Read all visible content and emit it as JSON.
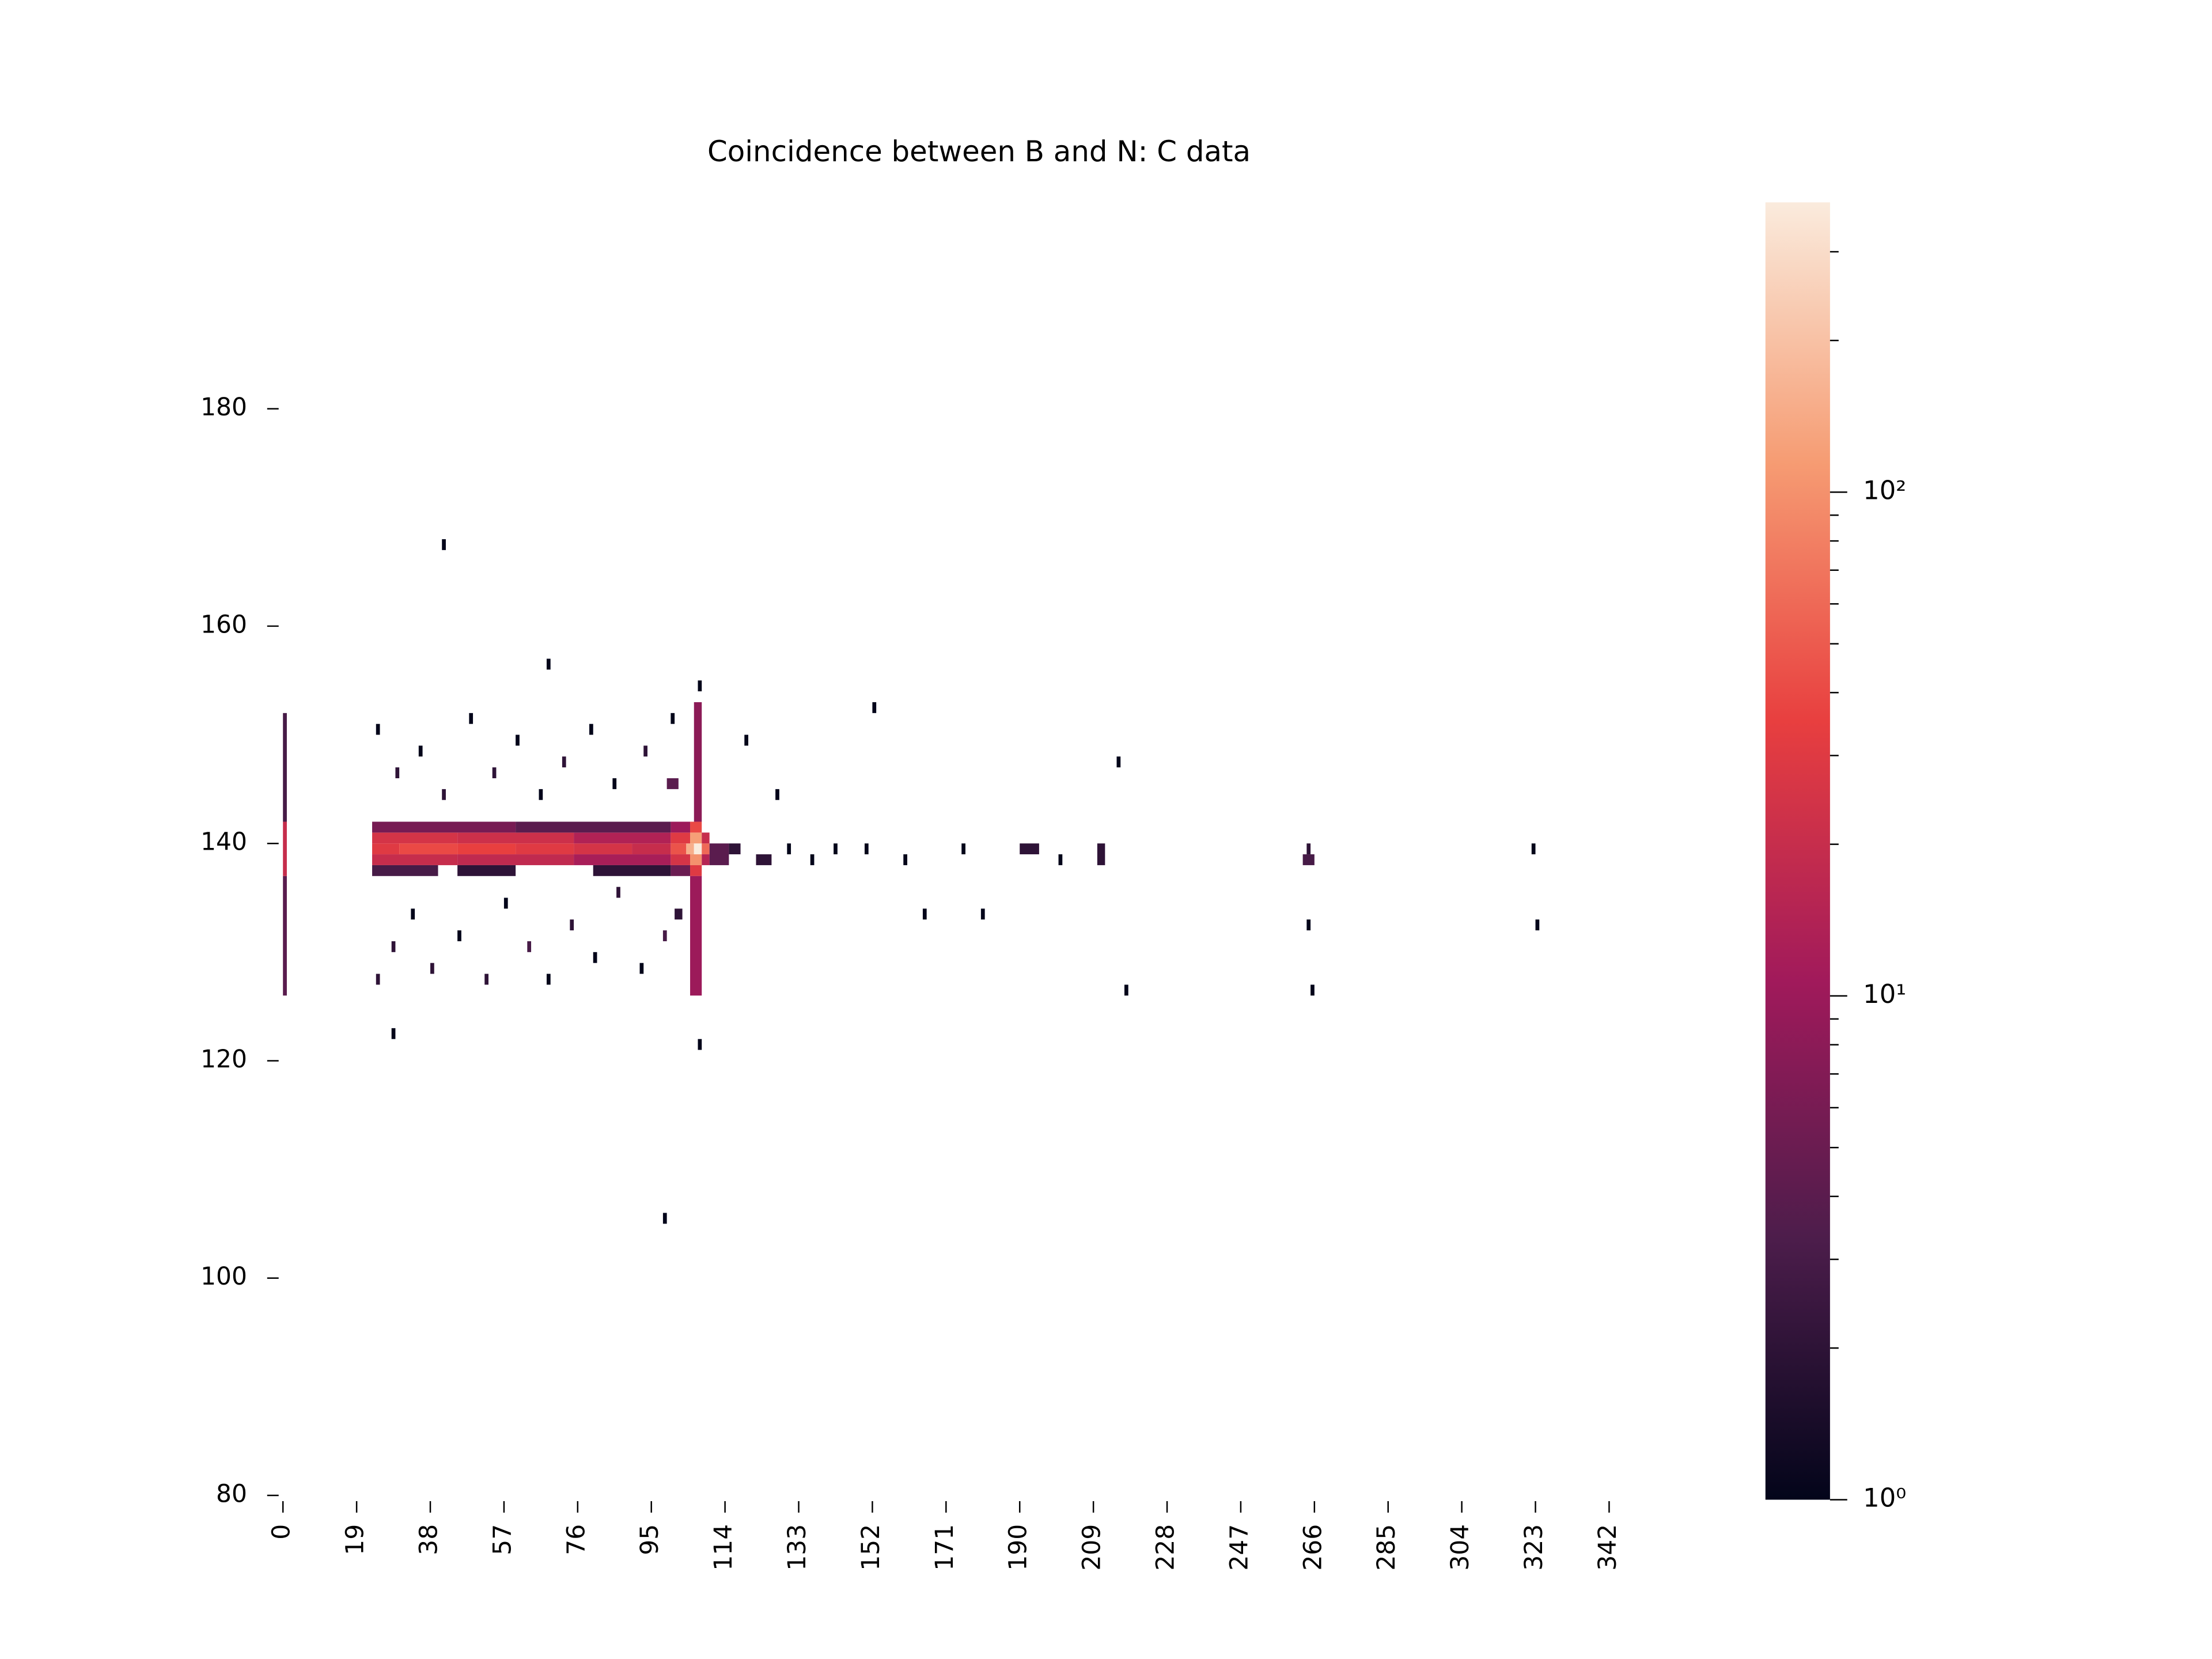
{
  "chart_data": {
    "type": "heatmap",
    "title": "Coincidence between B and N: C data",
    "xlim": [
      0,
      356
    ],
    "ylim": [
      80,
      199
    ],
    "xticks": [
      0,
      19,
      38,
      57,
      76,
      95,
      114,
      133,
      152,
      171,
      190,
      209,
      228,
      247,
      266,
      285,
      304,
      323,
      342
    ],
    "yticks": [
      80,
      100,
      120,
      140,
      160,
      180
    ],
    "color_scale": "log",
    "clim": [
      1,
      376
    ],
    "cticks": [
      {
        "value": 1,
        "label": "10⁰"
      },
      {
        "value": 10,
        "label": "10¹"
      },
      {
        "value": 100,
        "label": "10²"
      }
    ],
    "cticks_minor": [
      2,
      3,
      4,
      5,
      6,
      7,
      8,
      9,
      20,
      30,
      40,
      50,
      60,
      70,
      80,
      90,
      200,
      300
    ],
    "colormap": [
      "#03051a",
      "#4c1d4b",
      "#a11a5b",
      "#e83f3f",
      "#f69c73",
      "#faebdd"
    ],
    "cells": [
      {
        "x0": 23,
        "x1": 30,
        "y0": 139,
        "y1": 140,
        "value": 30
      },
      {
        "x0": 30,
        "x1": 45,
        "y0": 139,
        "y1": 140,
        "value": 40
      },
      {
        "x0": 45,
        "x1": 60,
        "y0": 139,
        "y1": 140,
        "value": 35
      },
      {
        "x0": 60,
        "x1": 75,
        "y0": 139,
        "y1": 140,
        "value": 30
      },
      {
        "x0": 75,
        "x1": 90,
        "y0": 139,
        "y1": 140,
        "value": 25
      },
      {
        "x0": 90,
        "x1": 100,
        "y0": 139,
        "y1": 140,
        "value": 20
      },
      {
        "x0": 100,
        "x1": 104,
        "y0": 139,
        "y1": 140,
        "value": 45
      },
      {
        "x0": 104,
        "x1": 106,
        "y0": 139,
        "y1": 140,
        "value": 150
      },
      {
        "x0": 106,
        "x1": 108,
        "y0": 139,
        "y1": 140,
        "value": 376
      },
      {
        "x0": 108,
        "x1": 110,
        "y0": 139,
        "y1": 140,
        "value": 60
      },
      {
        "x0": 23,
        "x1": 45,
        "y0": 140,
        "y1": 141,
        "value": 25
      },
      {
        "x0": 45,
        "x1": 75,
        "y0": 140,
        "y1": 141,
        "value": 22
      },
      {
        "x0": 75,
        "x1": 100,
        "y0": 140,
        "y1": 141,
        "value": 14
      },
      {
        "x0": 100,
        "x1": 105,
        "y0": 140,
        "y1": 141,
        "value": 30
      },
      {
        "x0": 105,
        "x1": 108,
        "y0": 140,
        "y1": 141,
        "value": 120
      },
      {
        "x0": 108,
        "x1": 110,
        "y0": 140,
        "y1": 141,
        "value": 20
      },
      {
        "x0": 23,
        "x1": 45,
        "y0": 138,
        "y1": 139,
        "value": 20
      },
      {
        "x0": 45,
        "x1": 75,
        "y0": 138,
        "y1": 139,
        "value": 18
      },
      {
        "x0": 75,
        "x1": 100,
        "y0": 138,
        "y1": 139,
        "value": 12
      },
      {
        "x0": 100,
        "x1": 105,
        "y0": 138,
        "y1": 139,
        "value": 25
      },
      {
        "x0": 105,
        "x1": 108,
        "y0": 138,
        "y1": 139,
        "value": 100
      },
      {
        "x0": 108,
        "x1": 110,
        "y0": 138,
        "y1": 139,
        "value": 15
      },
      {
        "x0": 23,
        "x1": 60,
        "y0": 141,
        "y1": 142,
        "value": 6
      },
      {
        "x0": 60,
        "x1": 100,
        "y0": 141,
        "y1": 142,
        "value": 4
      },
      {
        "x0": 100,
        "x1": 105,
        "y0": 141,
        "y1": 142,
        "value": 10
      },
      {
        "x0": 105,
        "x1": 108,
        "y0": 141,
        "y1": 142,
        "value": 40
      },
      {
        "x0": 23,
        "x1": 40,
        "y0": 137,
        "y1": 138,
        "value": 3
      },
      {
        "x0": 45,
        "x1": 60,
        "y0": 137,
        "y1": 138,
        "value": 2
      },
      {
        "x0": 80,
        "x1": 100,
        "y0": 137,
        "y1": 138,
        "value": 2
      },
      {
        "x0": 100,
        "x1": 105,
        "y0": 137,
        "y1": 138,
        "value": 5
      },
      {
        "x0": 105,
        "x1": 108,
        "y0": 137,
        "y1": 138,
        "value": 30
      },
      {
        "x0": 105,
        "x1": 108,
        "y0": 126,
        "y1": 137,
        "value": 10
      },
      {
        "x0": 106,
        "x1": 108,
        "y0": 142,
        "y1": 153,
        "value": 8
      },
      {
        "x0": 0,
        "x1": 1,
        "y0": 126,
        "y1": 137,
        "value": 4
      },
      {
        "x0": 0,
        "x1": 1,
        "y0": 137,
        "y1": 142,
        "value": 20
      },
      {
        "x0": 0,
        "x1": 1,
        "y0": 142,
        "y1": 152,
        "value": 3
      },
      {
        "x0": 24,
        "x1": 25,
        "y0": 127,
        "y1": 128,
        "value": 2
      },
      {
        "x0": 28,
        "x1": 29,
        "y0": 130,
        "y1": 131,
        "value": 2
      },
      {
        "x0": 33,
        "x1": 34,
        "y0": 133,
        "y1": 134,
        "value": 1
      },
      {
        "x0": 38,
        "x1": 39,
        "y0": 128,
        "y1": 129,
        "value": 2
      },
      {
        "x0": 45,
        "x1": 46,
        "y0": 131,
        "y1": 132,
        "value": 1
      },
      {
        "x0": 52,
        "x1": 53,
        "y0": 127,
        "y1": 128,
        "value": 2
      },
      {
        "x0": 57,
        "x1": 58,
        "y0": 134,
        "y1": 135,
        "value": 1
      },
      {
        "x0": 63,
        "x1": 64,
        "y0": 130,
        "y1": 131,
        "value": 3
      },
      {
        "x0": 68,
        "x1": 69,
        "y0": 127,
        "y1": 128,
        "value": 1
      },
      {
        "x0": 74,
        "x1": 75,
        "y0": 132,
        "y1": 133,
        "value": 2
      },
      {
        "x0": 80,
        "x1": 81,
        "y0": 129,
        "y1": 130,
        "value": 1
      },
      {
        "x0": 86,
        "x1": 87,
        "y0": 135,
        "y1": 136,
        "value": 2
      },
      {
        "x0": 92,
        "x1": 93,
        "y0": 128,
        "y1": 129,
        "value": 1
      },
      {
        "x0": 98,
        "x1": 99,
        "y0": 131,
        "y1": 132,
        "value": 3
      },
      {
        "x0": 101,
        "x1": 103,
        "y0": 133,
        "y1": 134,
        "value": 2
      },
      {
        "x0": 24,
        "x1": 25,
        "y0": 150,
        "y1": 151,
        "value": 1
      },
      {
        "x0": 29,
        "x1": 30,
        "y0": 146,
        "y1": 147,
        "value": 2
      },
      {
        "x0": 35,
        "x1": 36,
        "y0": 148,
        "y1": 149,
        "value": 1
      },
      {
        "x0": 41,
        "x1": 42,
        "y0": 144,
        "y1": 145,
        "value": 2
      },
      {
        "x0": 48,
        "x1": 49,
        "y0": 151,
        "y1": 152,
        "value": 1
      },
      {
        "x0": 54,
        "x1": 55,
        "y0": 146,
        "y1": 147,
        "value": 2
      },
      {
        "x0": 60,
        "x1": 61,
        "y0": 149,
        "y1": 150,
        "value": 1
      },
      {
        "x0": 66,
        "x1": 67,
        "y0": 144,
        "y1": 145,
        "value": 1
      },
      {
        "x0": 72,
        "x1": 73,
        "y0": 147,
        "y1": 148,
        "value": 2
      },
      {
        "x0": 79,
        "x1": 80,
        "y0": 150,
        "y1": 151,
        "value": 1
      },
      {
        "x0": 85,
        "x1": 86,
        "y0": 145,
        "y1": 146,
        "value": 1
      },
      {
        "x0": 93,
        "x1": 94,
        "y0": 148,
        "y1": 149,
        "value": 2
      },
      {
        "x0": 99,
        "x1": 102,
        "y0": 145,
        "y1": 146,
        "value": 4
      },
      {
        "x0": 100,
        "x1": 101,
        "y0": 151,
        "y1": 152,
        "value": 1
      },
      {
        "x0": 110,
        "x1": 115,
        "y0": 138,
        "y1": 140,
        "value": 4
      },
      {
        "x0": 115,
        "x1": 118,
        "y0": 139,
        "y1": 140,
        "value": 2
      },
      {
        "x0": 122,
        "x1": 126,
        "y0": 138,
        "y1": 139,
        "value": 2
      },
      {
        "x0": 130,
        "x1": 131,
        "y0": 139,
        "y1": 140,
        "value": 1
      },
      {
        "x0": 136,
        "x1": 137,
        "y0": 138,
        "y1": 139,
        "value": 1
      },
      {
        "x0": 142,
        "x1": 143,
        "y0": 139,
        "y1": 140,
        "value": 1
      },
      {
        "x0": 150,
        "x1": 151,
        "y0": 139,
        "y1": 140,
        "value": 1
      },
      {
        "x0": 160,
        "x1": 161,
        "y0": 138,
        "y1": 139,
        "value": 1
      },
      {
        "x0": 175,
        "x1": 176,
        "y0": 139,
        "y1": 140,
        "value": 1
      },
      {
        "x0": 190,
        "x1": 195,
        "y0": 139,
        "y1": 140,
        "value": 2
      },
      {
        "x0": 200,
        "x1": 201,
        "y0": 138,
        "y1": 139,
        "value": 1
      },
      {
        "x0": 210,
        "x1": 212,
        "y0": 138,
        "y1": 140,
        "value": 2
      },
      {
        "x0": 263,
        "x1": 266,
        "y0": 138,
        "y1": 139,
        "value": 3
      },
      {
        "x0": 264,
        "x1": 265,
        "y0": 139,
        "y1": 140,
        "value": 2
      },
      {
        "x0": 322,
        "x1": 323,
        "y0": 139,
        "y1": 140,
        "value": 1
      },
      {
        "x0": 41,
        "x1": 42,
        "y0": 167,
        "y1": 168,
        "value": 1
      },
      {
        "x0": 68,
        "x1": 69,
        "y0": 156,
        "y1": 157,
        "value": 1
      },
      {
        "x0": 107,
        "x1": 108,
        "y0": 154,
        "y1": 155,
        "value": 1
      },
      {
        "x0": 152,
        "x1": 153,
        "y0": 152,
        "y1": 153,
        "value": 1
      },
      {
        "x0": 215,
        "x1": 216,
        "y0": 147,
        "y1": 148,
        "value": 1
      },
      {
        "x0": 119,
        "x1": 120,
        "y0": 149,
        "y1": 150,
        "value": 1
      },
      {
        "x0": 127,
        "x1": 128,
        "y0": 144,
        "y1": 145,
        "value": 1
      },
      {
        "x0": 264,
        "x1": 265,
        "y0": 132,
        "y1": 133,
        "value": 1
      },
      {
        "x0": 323,
        "x1": 324,
        "y0": 132,
        "y1": 133,
        "value": 1
      },
      {
        "x0": 217,
        "x1": 218,
        "y0": 126,
        "y1": 127,
        "value": 1
      },
      {
        "x0": 265,
        "x1": 266,
        "y0": 126,
        "y1": 127,
        "value": 1
      },
      {
        "x0": 28,
        "x1": 29,
        "y0": 122,
        "y1": 123,
        "value": 1
      },
      {
        "x0": 107,
        "x1": 108,
        "y0": 121,
        "y1": 122,
        "value": 1
      },
      {
        "x0": 98,
        "x1": 99,
        "y0": 105,
        "y1": 106,
        "value": 1
      },
      {
        "x0": 180,
        "x1": 181,
        "y0": 133,
        "y1": 134,
        "value": 1
      },
      {
        "x0": 165,
        "x1": 166,
        "y0": 133,
        "y1": 134,
        "value": 1
      }
    ]
  }
}
